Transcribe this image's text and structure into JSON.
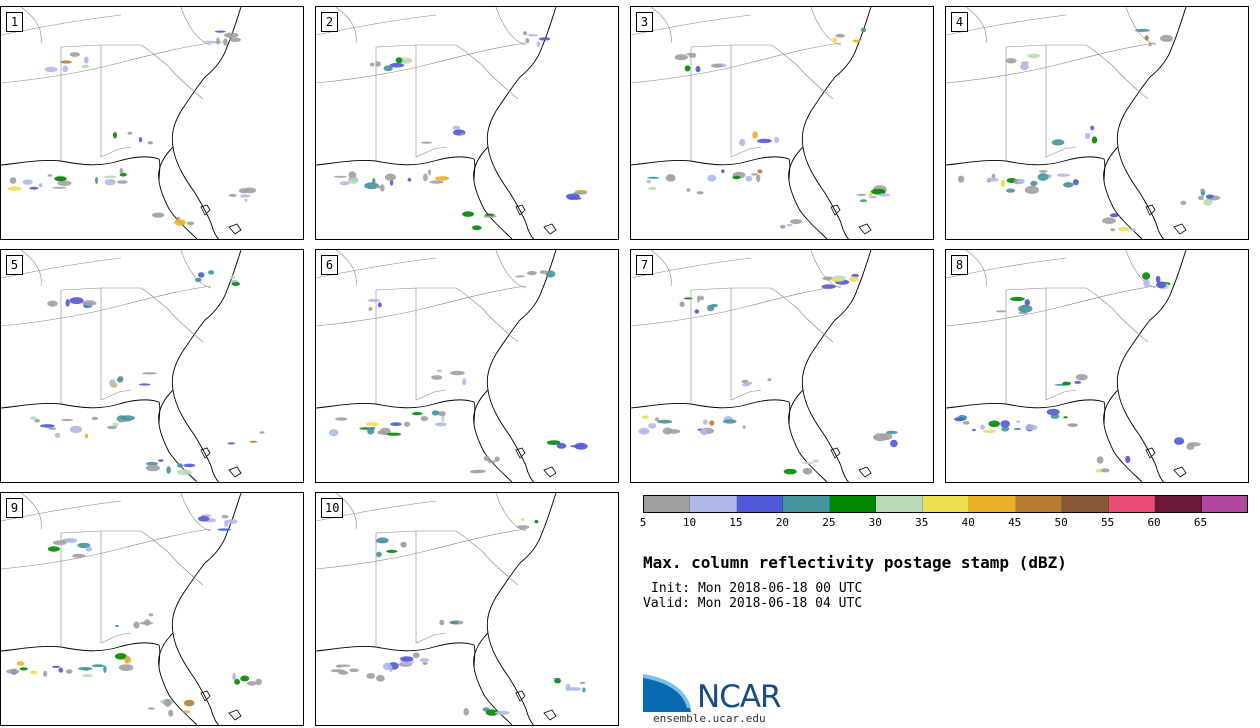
{
  "map": {
    "panels": [
      "1",
      "2",
      "3",
      "4",
      "5",
      "6",
      "7",
      "8",
      "9",
      "10"
    ]
  },
  "colorbar": {
    "colors": [
      "#a0a0a0",
      "#b0b8e8",
      "#5058d8",
      "#44949c",
      "#008800",
      "#b8dcb8",
      "#ece050",
      "#ecb028",
      "#b87c30",
      "#885838",
      "#ec4c78",
      "#6c1838",
      "#b048a0"
    ],
    "ticks": [
      "5",
      "10",
      "15",
      "20",
      "25",
      "30",
      "35",
      "40",
      "45",
      "50",
      "55",
      "60",
      "65"
    ]
  },
  "title": "Max. column reflectivity postage stamp (dBZ)",
  "init": "Init: Mon 2018-06-18 00 UTC",
  "valid": "Valid: Mon 2018-06-18 04 UTC",
  "logo": {
    "name": "NCAR",
    "site": "ensemble.ucar.edu"
  }
}
